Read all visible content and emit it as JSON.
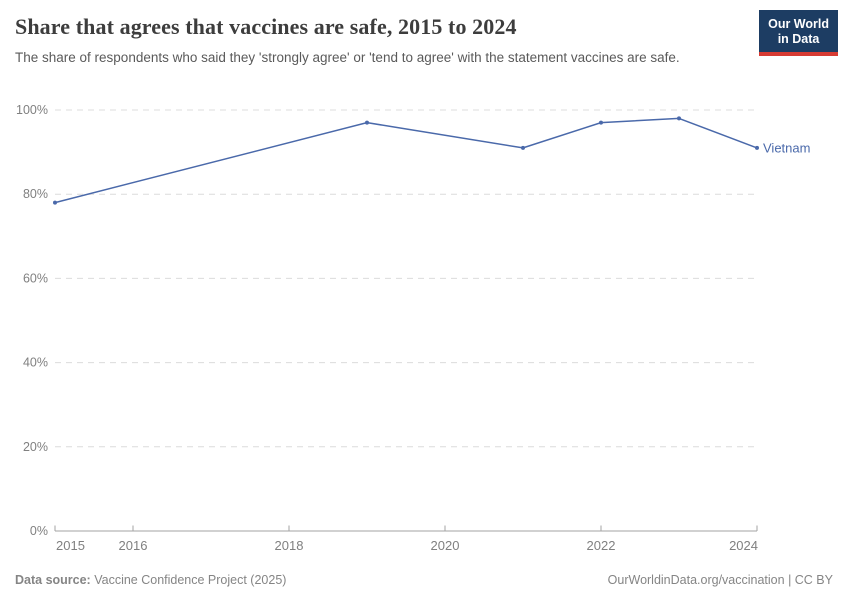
{
  "header": {
    "title": "Share that agrees that vaccines are safe, 2015 to 2024",
    "subtitle": "The share of respondents who said they 'strongly agree' or 'tend to agree' with the statement vaccines are safe.",
    "logo": {
      "line1": "Our World",
      "line2": "in Data",
      "bg_color": "#1d3d63",
      "accent_color": "#d73b33"
    }
  },
  "chart_data": {
    "type": "line",
    "title": "Share that agrees that vaccines are safe, 2015 to 2024",
    "xlabel": "",
    "ylabel": "",
    "xlim": [
      2015,
      2024
    ],
    "ylim": [
      0,
      100
    ],
    "grid": "horizontal-dashed",
    "legend": "end-of-line-label",
    "x_ticks": [
      2015,
      2016,
      2018,
      2020,
      2022,
      2024
    ],
    "x_tick_labels": [
      "2015",
      "2016",
      "2018",
      "2020",
      "2022",
      "2024"
    ],
    "y_ticks": [
      0,
      20,
      40,
      60,
      80,
      100
    ],
    "y_tick_labels": [
      "0%",
      "20%",
      "40%",
      "60%",
      "80%",
      "100%"
    ],
    "grid_color": "#dcdcdc",
    "axis_color": "#a3a3a3",
    "tick_label_color": "#808080",
    "series": [
      {
        "name": "Vietnam",
        "color": "#4a69aa",
        "points": [
          {
            "x": 2015,
            "y": 78
          },
          {
            "x": 2019,
            "y": 97
          },
          {
            "x": 2021,
            "y": 91
          },
          {
            "x": 2022,
            "y": 97
          },
          {
            "x": 2023,
            "y": 98
          },
          {
            "x": 2024,
            "y": 91
          }
        ]
      }
    ]
  },
  "footer": {
    "source_label": "Data source:",
    "source_text": " Vaccine Confidence Project (2025)",
    "credit": "OurWorldinData.org/vaccination | CC BY"
  }
}
